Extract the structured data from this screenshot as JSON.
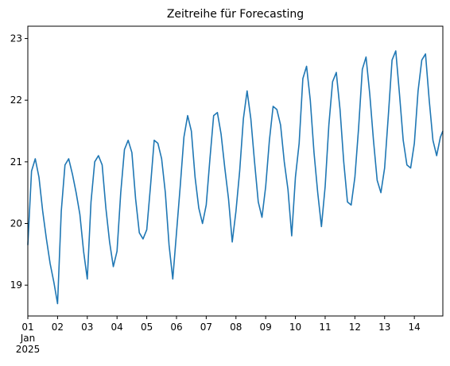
{
  "chart_data": {
    "type": "line",
    "title": "Zeitreihe für Forecasting",
    "xlabel": "",
    "ylabel": "",
    "x_range_days": [
      "2025-01-01T00:00",
      "2025-01-14T23:00"
    ],
    "ylim": [
      18.5,
      23.2
    ],
    "grid": false,
    "legend": "none",
    "x_ticks": [
      {
        "label": "01",
        "sub": [
          "Jan",
          "2025"
        ],
        "date": "2025-01-01"
      },
      {
        "label": "02",
        "date": "2025-01-02"
      },
      {
        "label": "03",
        "date": "2025-01-03"
      },
      {
        "label": "04",
        "date": "2025-01-04"
      },
      {
        "label": "05",
        "date": "2025-01-05"
      },
      {
        "label": "06",
        "date": "2025-01-06"
      },
      {
        "label": "07",
        "date": "2025-01-07"
      },
      {
        "label": "08",
        "date": "2025-01-08"
      },
      {
        "label": "09",
        "date": "2025-01-09"
      },
      {
        "label": "10",
        "date": "2025-01-10"
      },
      {
        "label": "11",
        "date": "2025-01-11"
      },
      {
        "label": "12",
        "date": "2025-01-12"
      },
      {
        "label": "13",
        "date": "2025-01-13"
      },
      {
        "label": "14",
        "date": "2025-01-14"
      }
    ],
    "y_ticks": [
      {
        "label": "19",
        "value": 19
      },
      {
        "label": "20",
        "value": 20
      },
      {
        "label": "21",
        "value": 21
      },
      {
        "label": "22",
        "value": 22
      },
      {
        "label": "23",
        "value": 23
      }
    ],
    "series": [
      {
        "color": "#1f77b4",
        "points": [
          [
            "2025-01-01T00:00",
            19.65
          ],
          [
            "2025-01-01T03:00",
            20.85
          ],
          [
            "2025-01-01T06:00",
            21.05
          ],
          [
            "2025-01-01T09:00",
            20.75
          ],
          [
            "2025-01-01T12:00",
            20.2
          ],
          [
            "2025-01-01T15:00",
            19.75
          ],
          [
            "2025-01-01T18:00",
            19.35
          ],
          [
            "2025-01-01T21:00",
            19.05
          ],
          [
            "2025-01-02T00:00",
            18.7
          ],
          [
            "2025-01-02T03:00",
            20.2
          ],
          [
            "2025-01-02T06:00",
            20.95
          ],
          [
            "2025-01-02T09:00",
            21.05
          ],
          [
            "2025-01-02T12:00",
            20.8
          ],
          [
            "2025-01-02T15:00",
            20.5
          ],
          [
            "2025-01-02T18:00",
            20.15
          ],
          [
            "2025-01-02T21:00",
            19.55
          ],
          [
            "2025-01-03T00:00",
            19.1
          ],
          [
            "2025-01-03T03:00",
            20.35
          ],
          [
            "2025-01-03T06:00",
            21.0
          ],
          [
            "2025-01-03T09:00",
            21.1
          ],
          [
            "2025-01-03T12:00",
            20.95
          ],
          [
            "2025-01-03T15:00",
            20.25
          ],
          [
            "2025-01-03T18:00",
            19.7
          ],
          [
            "2025-01-03T21:00",
            19.3
          ],
          [
            "2025-01-04T00:00",
            19.55
          ],
          [
            "2025-01-04T03:00",
            20.5
          ],
          [
            "2025-01-04T06:00",
            21.2
          ],
          [
            "2025-01-04T09:00",
            21.35
          ],
          [
            "2025-01-04T12:00",
            21.15
          ],
          [
            "2025-01-04T15:00",
            20.4
          ],
          [
            "2025-01-04T18:00",
            19.85
          ],
          [
            "2025-01-04T21:00",
            19.75
          ],
          [
            "2025-01-05T00:00",
            19.9
          ],
          [
            "2025-01-05T03:00",
            20.6
          ],
          [
            "2025-01-05T06:00",
            21.35
          ],
          [
            "2025-01-05T09:00",
            21.3
          ],
          [
            "2025-01-05T12:00",
            21.05
          ],
          [
            "2025-01-05T15:00",
            20.5
          ],
          [
            "2025-01-05T18:00",
            19.65
          ],
          [
            "2025-01-05T21:00",
            19.1
          ],
          [
            "2025-01-06T00:00",
            19.85
          ],
          [
            "2025-01-06T03:00",
            20.6
          ],
          [
            "2025-01-06T06:00",
            21.4
          ],
          [
            "2025-01-06T09:00",
            21.75
          ],
          [
            "2025-01-06T12:00",
            21.5
          ],
          [
            "2025-01-06T15:00",
            20.75
          ],
          [
            "2025-01-06T18:00",
            20.25
          ],
          [
            "2025-01-06T21:00",
            20.0
          ],
          [
            "2025-01-07T00:00",
            20.3
          ],
          [
            "2025-01-07T03:00",
            21.05
          ],
          [
            "2025-01-07T06:00",
            21.75
          ],
          [
            "2025-01-07T09:00",
            21.8
          ],
          [
            "2025-01-07T12:00",
            21.45
          ],
          [
            "2025-01-07T15:00",
            20.9
          ],
          [
            "2025-01-07T18:00",
            20.4
          ],
          [
            "2025-01-07T21:00",
            19.7
          ],
          [
            "2025-01-08T00:00",
            20.2
          ],
          [
            "2025-01-08T03:00",
            20.85
          ],
          [
            "2025-01-08T06:00",
            21.7
          ],
          [
            "2025-01-08T09:00",
            22.15
          ],
          [
            "2025-01-08T12:00",
            21.7
          ],
          [
            "2025-01-08T15:00",
            21.0
          ],
          [
            "2025-01-08T18:00",
            20.35
          ],
          [
            "2025-01-08T21:00",
            20.1
          ],
          [
            "2025-01-09T00:00",
            20.6
          ],
          [
            "2025-01-09T03:00",
            21.35
          ],
          [
            "2025-01-09T06:00",
            21.9
          ],
          [
            "2025-01-09T09:00",
            21.85
          ],
          [
            "2025-01-09T12:00",
            21.6
          ],
          [
            "2025-01-09T15:00",
            21.0
          ],
          [
            "2025-01-09T18:00",
            20.55
          ],
          [
            "2025-01-09T21:00",
            19.8
          ],
          [
            "2025-01-10T00:00",
            20.75
          ],
          [
            "2025-01-10T03:00",
            21.3
          ],
          [
            "2025-01-10T06:00",
            22.35
          ],
          [
            "2025-01-10T09:00",
            22.55
          ],
          [
            "2025-01-10T12:00",
            22.0
          ],
          [
            "2025-01-10T15:00",
            21.15
          ],
          [
            "2025-01-10T18:00",
            20.5
          ],
          [
            "2025-01-10T21:00",
            19.95
          ],
          [
            "2025-01-11T00:00",
            20.6
          ],
          [
            "2025-01-11T03:00",
            21.6
          ],
          [
            "2025-01-11T06:00",
            22.3
          ],
          [
            "2025-01-11T09:00",
            22.45
          ],
          [
            "2025-01-11T12:00",
            21.85
          ],
          [
            "2025-01-11T15:00",
            21.0
          ],
          [
            "2025-01-11T18:00",
            20.35
          ],
          [
            "2025-01-11T21:00",
            20.3
          ],
          [
            "2025-01-12T00:00",
            20.75
          ],
          [
            "2025-01-12T03:00",
            21.55
          ],
          [
            "2025-01-12T06:00",
            22.5
          ],
          [
            "2025-01-12T09:00",
            22.7
          ],
          [
            "2025-01-12T12:00",
            22.1
          ],
          [
            "2025-01-12T15:00",
            21.35
          ],
          [
            "2025-01-12T18:00",
            20.7
          ],
          [
            "2025-01-12T21:00",
            20.5
          ],
          [
            "2025-01-13T00:00",
            20.9
          ],
          [
            "2025-01-13T03:00",
            21.75
          ],
          [
            "2025-01-13T06:00",
            22.65
          ],
          [
            "2025-01-13T09:00",
            22.8
          ],
          [
            "2025-01-13T12:00",
            22.1
          ],
          [
            "2025-01-13T15:00",
            21.35
          ],
          [
            "2025-01-13T18:00",
            20.95
          ],
          [
            "2025-01-13T21:00",
            20.9
          ],
          [
            "2025-01-14T00:00",
            21.3
          ],
          [
            "2025-01-14T03:00",
            22.15
          ],
          [
            "2025-01-14T06:00",
            22.65
          ],
          [
            "2025-01-14T09:00",
            22.75
          ],
          [
            "2025-01-14T12:00",
            22.0
          ],
          [
            "2025-01-14T15:00",
            21.35
          ],
          [
            "2025-01-14T18:00",
            21.1
          ],
          [
            "2025-01-14T21:00",
            21.4
          ],
          [
            "2025-01-14T23:00",
            21.5
          ]
        ]
      }
    ]
  }
}
